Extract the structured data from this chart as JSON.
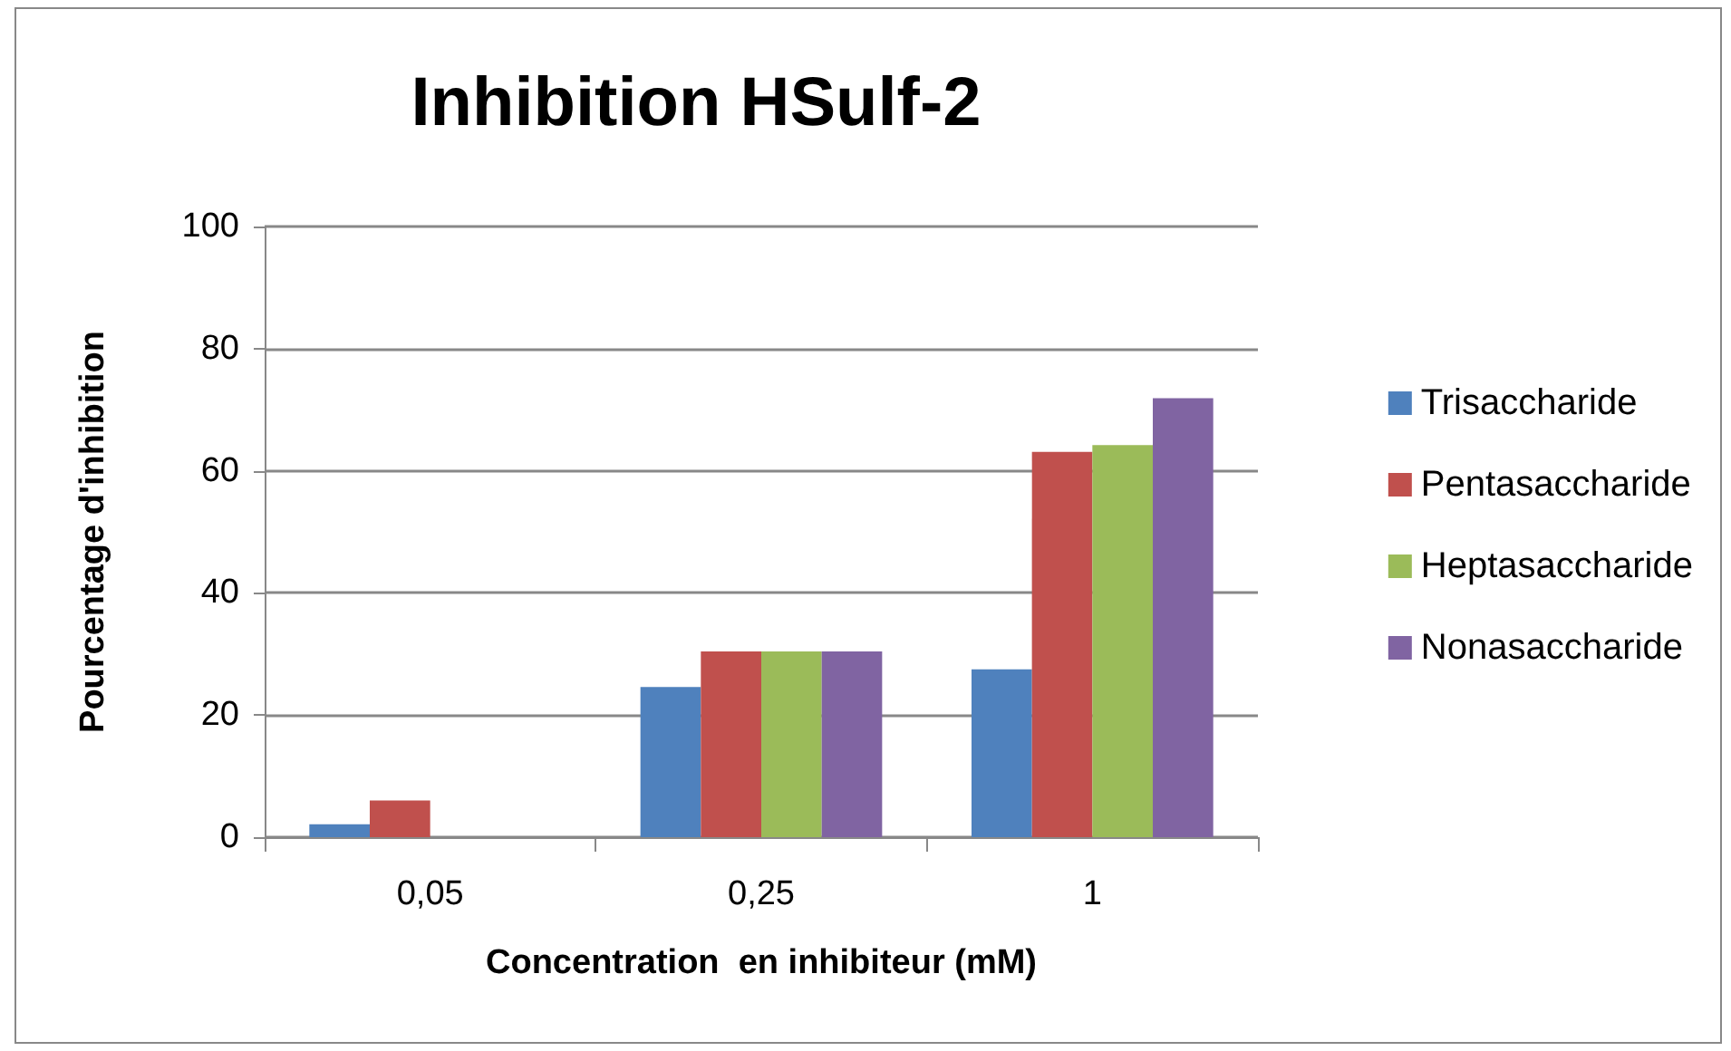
{
  "chart_data": {
    "type": "bar",
    "title": "Inhibition HSulf-2",
    "xlabel": "Concentration  en inhibiteur (mM)",
    "ylabel": "Pourcentage d'inhibition",
    "categories": [
      "0,05",
      "0,25",
      "1"
    ],
    "series": [
      {
        "name": "Trisaccharide",
        "color": "#4f81bd",
        "values": [
          2.1,
          24.6,
          27.5
        ]
      },
      {
        "name": "Pentasaccharide",
        "color": "#c0504d",
        "values": [
          6.0,
          30.4,
          63.1
        ]
      },
      {
        "name": "Heptasaccharide",
        "color": "#9bbb59",
        "values": [
          null,
          30.4,
          64.2
        ]
      },
      {
        "name": "Nonasaccharide",
        "color": "#8064a2",
        "values": [
          null,
          30.4,
          71.9
        ]
      }
    ],
    "ylim": [
      0,
      100
    ],
    "yticks": [
      0,
      20,
      40,
      60,
      80,
      100
    ],
    "grid": "y",
    "legend": "right"
  }
}
